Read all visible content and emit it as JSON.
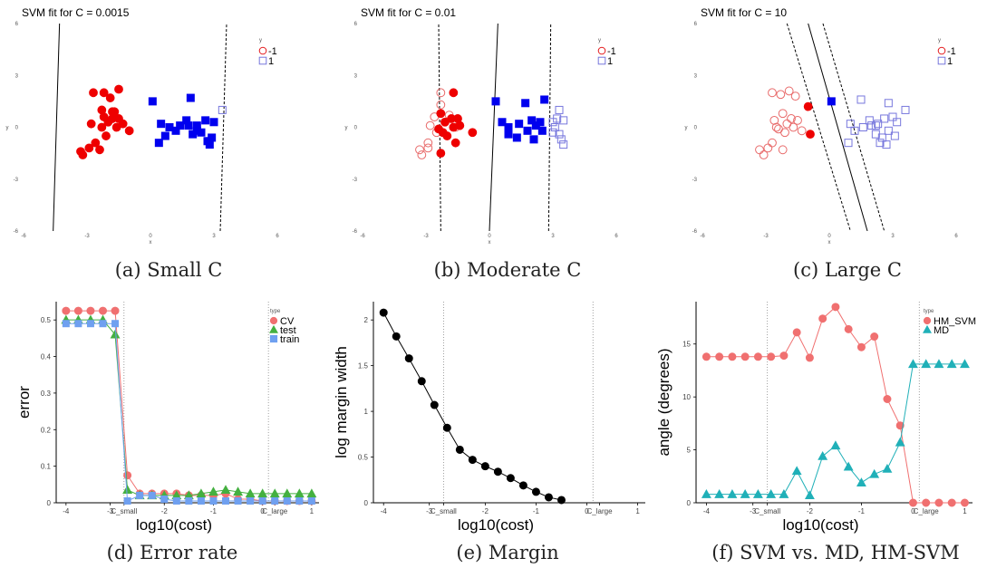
{
  "chart_data": [
    {
      "id": "a",
      "type": "scatter",
      "title": "SVM fit for C = 0.0015",
      "caption": "(a) Small C",
      "xlabel": "x",
      "ylabel": "y",
      "xlim": [
        -6,
        6
      ],
      "ylim": [
        -6,
        6
      ],
      "xticks": [
        -6,
        -3,
        0,
        3,
        6
      ],
      "yticks": [
        -6,
        -3,
        0,
        3,
        6
      ],
      "legend": {
        "title": "y",
        "entries": [
          {
            "label": "-1",
            "color": "#e41a1c",
            "shape": "circle"
          },
          {
            "label": "1",
            "color": "#7777dd",
            "shape": "square"
          }
        ],
        "placement": "top-right"
      },
      "lines": [
        {
          "style": "solid",
          "x1": -4.6,
          "y1": -6,
          "x2": -4.3,
          "y2": 6
        },
        {
          "style": "dashed",
          "x1": 3.3,
          "y1": -6,
          "x2": 3.6,
          "y2": 6
        }
      ],
      "series": [
        {
          "name": "-1",
          "shape": "circle",
          "filled": true,
          "x": [
            -2.7,
            -2.2,
            -1.9,
            -2.3,
            -2.8,
            -1.8,
            -1.5,
            -1.0,
            -2.0,
            -1.7,
            -1.6,
            -2.1,
            -2.6,
            -1.3,
            -3.3,
            -2.9,
            -2.4,
            -3.2,
            -2.3,
            -1.5,
            -1.8,
            -2.2
          ],
          "y": [
            2.0,
            2.0,
            1.7,
            1.0,
            0.2,
            0.5,
            0.5,
            -0.2,
            0.3,
            0.9,
            0.0,
            -0.5,
            -0.9,
            0.2,
            -1.4,
            -1.2,
            -1.3,
            -1.6,
            0.0,
            2.2,
            0.9,
            0.6
          ]
        },
        {
          "name": "1",
          "shape": "square",
          "filled": true,
          "x": [
            0.1,
            1.9,
            0.5,
            0.9,
            1.4,
            2.2,
            2.6,
            3.0,
            0.7,
            1.2,
            1.7,
            2.0,
            2.4,
            2.7,
            2.9,
            2.8,
            1.8,
            0.4,
            2.2
          ],
          "y": [
            1.5,
            1.7,
            0.2,
            0.0,
            0.1,
            0.1,
            0.4,
            0.3,
            -0.5,
            -0.2,
            0.4,
            -0.4,
            -0.3,
            -0.8,
            -0.6,
            -1.0,
            0.1,
            -0.9,
            -0.2
          ]
        },
        {
          "name": "1",
          "shape": "square",
          "filled": false,
          "x": [
            3.4
          ],
          "y": [
            1.0
          ]
        }
      ]
    },
    {
      "id": "b",
      "type": "scatter",
      "title": "SVM fit for C = 0.01",
      "caption": "(b) Moderate C",
      "xlabel": "x",
      "ylabel": "y",
      "xlim": [
        -6,
        6
      ],
      "ylim": [
        -6,
        6
      ],
      "xticks": [
        -6,
        -3,
        0,
        3,
        6
      ],
      "yticks": [
        -6,
        -3,
        0,
        3,
        6
      ],
      "legend": {
        "title": "y",
        "entries": [
          {
            "label": "-1",
            "color": "#e41a1c",
            "shape": "circle"
          },
          {
            "label": "1",
            "color": "#7777dd",
            "shape": "square"
          }
        ],
        "placement": "top-right"
      },
      "lines": [
        {
          "style": "dashed",
          "x1": -2.3,
          "y1": -6,
          "x2": -2.4,
          "y2": 6
        },
        {
          "style": "solid",
          "x1": 0.0,
          "y1": -6,
          "x2": 0.4,
          "y2": 6
        },
        {
          "style": "dashed",
          "x1": 2.8,
          "y1": -6,
          "x2": 2.9,
          "y2": 6
        }
      ],
      "series": [
        {
          "name": "-1",
          "shape": "circle",
          "filled": false,
          "x": [
            -2.3,
            -2.3,
            -1.9,
            -2.8,
            -2.6,
            -2.5,
            -2.9,
            -3.3,
            -2.9,
            -3.2,
            -1.6
          ],
          "y": [
            2.0,
            1.3,
            0.7,
            0.1,
            0.6,
            -0.3,
            -0.9,
            -1.3,
            -1.2,
            -1.6,
            0.0
          ]
        },
        {
          "name": "-1",
          "shape": "circle",
          "filled": true,
          "x": [
            -1.7,
            -2.3,
            -1.8,
            -1.5,
            -2.1,
            -1.7,
            -1.4,
            -2.4,
            -2.2,
            -0.8,
            -2.0,
            -1.6
          ],
          "y": [
            2.0,
            0.8,
            0.5,
            0.5,
            0.3,
            0.0,
            0.1,
            -0.1,
            -0.3,
            -0.3,
            -0.5,
            -0.9
          ]
        },
        {
          "name": "-1",
          "shape": "circle",
          "filled": true,
          "x": [
            -2.3
          ],
          "y": [
            -1.5
          ]
        },
        {
          "name": "1",
          "shape": "square",
          "filled": true,
          "x": [
            0.3,
            1.7,
            0.6,
            0.9,
            1.4,
            2.0,
            2.2,
            2.4,
            2.6,
            0.9,
            1.3,
            1.8,
            2.1,
            2.5
          ],
          "y": [
            1.5,
            1.4,
            0.3,
            0.0,
            0.2,
            0.4,
            0.1,
            0.3,
            1.6,
            -0.4,
            -0.6,
            -0.2,
            -0.7,
            -0.2
          ]
        },
        {
          "name": "1",
          "shape": "square",
          "filled": false,
          "x": [
            3.3,
            3.0,
            3.1,
            3.2,
            3.5,
            3.0,
            3.3,
            3.4,
            3.5
          ],
          "y": [
            1.0,
            0.3,
            0.0,
            0.5,
            0.4,
            -0.3,
            -0.4,
            -0.7,
            -1.0
          ]
        }
      ]
    },
    {
      "id": "c",
      "type": "scatter",
      "title": "SVM fit for C = 10",
      "caption": "(c) Large C",
      "xlabel": "x",
      "ylabel": "y",
      "xlim": [
        -6,
        6
      ],
      "ylim": [
        -6,
        6
      ],
      "xticks": [
        -6,
        -3,
        0,
        3,
        6
      ],
      "yticks": [
        -6,
        -3,
        0,
        3,
        6
      ],
      "legend": {
        "title": "y",
        "entries": [
          {
            "label": "-1",
            "color": "#e41a1c",
            "shape": "circle"
          },
          {
            "label": "1",
            "color": "#7777dd",
            "shape": "square"
          }
        ],
        "placement": "top-right"
      },
      "lines": [
        {
          "style": "dashed",
          "x1": -2.0,
          "y1": 6,
          "x2": 1.0,
          "y2": -6
        },
        {
          "style": "solid",
          "x1": -1.0,
          "y1": 6,
          "x2": 1.8,
          "y2": -6
        },
        {
          "style": "dashed",
          "x1": -0.3,
          "y1": 6,
          "x2": 2.6,
          "y2": -6
        }
      ],
      "series": [
        {
          "name": "-1",
          "shape": "circle",
          "filled": false,
          "x": [
            -2.7,
            -2.3,
            -1.9,
            -1.6,
            -2.2,
            -1.8,
            -1.5,
            -2.0,
            -2.1,
            -2.4,
            -2.7,
            -2.6,
            -1.3,
            -3.3,
            -2.9,
            -2.2,
            -3.1,
            -2.5,
            -1.7
          ],
          "y": [
            2.0,
            1.9,
            2.1,
            1.8,
            0.8,
            0.5,
            0.4,
            0.2,
            -0.3,
            -0.1,
            -0.9,
            0.4,
            -0.2,
            -1.3,
            -1.2,
            -1.3,
            -1.6,
            0.0,
            0.0
          ]
        },
        {
          "name": "-1",
          "shape": "circle",
          "filled": true,
          "x": [
            -1.0,
            -0.9
          ],
          "y": [
            1.2,
            -0.4
          ]
        },
        {
          "name": "1",
          "shape": "square",
          "filled": true,
          "x": [
            0.1
          ],
          "y": [
            1.5
          ]
        },
        {
          "name": "1",
          "shape": "square",
          "filled": false,
          "x": [
            1.0,
            1.5,
            2.0,
            2.3,
            2.6,
            2.8,
            3.0,
            3.2,
            3.6,
            1.2,
            1.6,
            2.2,
            2.5,
            2.8,
            3.1,
            0.9,
            2.2,
            2.4,
            2.7,
            1.9
          ],
          "y": [
            0.2,
            1.6,
            0.1,
            0.2,
            0.5,
            1.4,
            0.6,
            0.3,
            1.0,
            -0.2,
            0.0,
            -0.4,
            -0.6,
            -0.2,
            -0.5,
            -0.9,
            0.1,
            -0.9,
            -1.0,
            0.4
          ]
        }
      ]
    },
    {
      "id": "d",
      "type": "line",
      "caption": "(d) Error rate",
      "xlabel": "log10(cost)",
      "ylabel": "error",
      "xlim": [
        -4.2,
        1.15
      ],
      "ylim": [
        0,
        0.55
      ],
      "xticks": [
        {
          "v": -4,
          "label": "-4"
        },
        {
          "v": -3.1,
          "label": "-3"
        },
        {
          "v": -2.82,
          "label": "C_small"
        },
        {
          "v": -2,
          "label": "-2"
        },
        {
          "v": -1,
          "label": "-1"
        },
        {
          "v": 0,
          "label": "0"
        },
        {
          "v": 0.25,
          "label": "C_large"
        },
        {
          "v": 1,
          "label": "1"
        }
      ],
      "yticks": [
        0,
        0.1,
        0.2,
        0.3,
        0.4,
        0.5
      ],
      "vlines": [
        -2.82,
        0.12
      ],
      "legend": {
        "title": "type",
        "entries": [
          {
            "label": "CV",
            "color": "#f07070",
            "shape": "circle"
          },
          {
            "label": "test",
            "color": "#44b040",
            "shape": "triangle"
          },
          {
            "label": "train",
            "color": "#6fa0f0",
            "shape": "square"
          }
        ],
        "placement": "top-right"
      },
      "x": [
        -4,
        -3.75,
        -3.5,
        -3.25,
        -3,
        -2.75,
        -2.5,
        -2.25,
        -2,
        -1.75,
        -1.5,
        -1.25,
        -1,
        -0.75,
        -0.5,
        -0.25,
        0,
        0.25,
        0.5,
        0.75,
        1
      ],
      "series": [
        {
          "name": "CV",
          "color": "#f07070",
          "shape": "circle",
          "values": [
            0.525,
            0.525,
            0.525,
            0.525,
            0.525,
            0.075,
            0.025,
            0.025,
            0.025,
            0.025,
            0.02,
            0.02,
            0.02,
            0.025,
            0.01,
            0.01,
            0.005,
            0.005,
            0.005,
            0.005,
            0.005
          ]
        },
        {
          "name": "test",
          "color": "#44b040",
          "shape": "triangle",
          "values": [
            0.5,
            0.5,
            0.5,
            0.5,
            0.46,
            0.035,
            0.02,
            0.02,
            0.02,
            0.02,
            0.02,
            0.025,
            0.03,
            0.035,
            0.03,
            0.025,
            0.025,
            0.025,
            0.025,
            0.025,
            0.025
          ]
        },
        {
          "name": "train",
          "color": "#6fa0f0",
          "shape": "square",
          "values": [
            0.49,
            0.49,
            0.49,
            0.49,
            0.49,
            0.005,
            0.02,
            0.02,
            0.01,
            0.005,
            0.005,
            0.005,
            0.005,
            0.005,
            0.005,
            0.005,
            0.005,
            0.005,
            0.005,
            0.005,
            0.005
          ]
        }
      ]
    },
    {
      "id": "e",
      "type": "line",
      "caption": "(e) Margin",
      "xlabel": "log10(cost)",
      "ylabel": "log margin width",
      "xlim": [
        -4.2,
        1.15
      ],
      "ylim": [
        0,
        2.2
      ],
      "xticks": [
        {
          "v": -4,
          "label": "-4"
        },
        {
          "v": -3.1,
          "label": "-3"
        },
        {
          "v": -2.82,
          "label": "C_small"
        },
        {
          "v": -2,
          "label": "-2"
        },
        {
          "v": -1,
          "label": "-1"
        },
        {
          "v": 0,
          "label": "0"
        },
        {
          "v": 0.25,
          "label": "C_large"
        },
        {
          "v": 1,
          "label": "1"
        }
      ],
      "yticks": [
        0,
        0.5,
        1.0,
        1.5,
        2.0
      ],
      "vlines": [
        -2.82,
        0.12
      ],
      "x": [
        -4,
        -3.75,
        -3.5,
        -3.25,
        -3,
        -2.75,
        -2.5,
        -2.25,
        -2,
        -1.75,
        -1.5,
        -1.25,
        -1,
        -0.75,
        -0.5
      ],
      "series": [
        {
          "color": "#000000",
          "shape": "circle",
          "values": [
            2.08,
            1.82,
            1.58,
            1.33,
            1.07,
            0.82,
            0.58,
            0.47,
            0.4,
            0.34,
            0.27,
            0.19,
            0.12,
            0.06,
            0.03
          ]
        }
      ]
    },
    {
      "id": "f",
      "type": "line",
      "caption": "(f) SVM vs. MD, HM-SVM",
      "xlabel": "log10(cost)",
      "ylabel": "angle (degrees)",
      "xlim": [
        -4.2,
        1.15
      ],
      "ylim": [
        0,
        19
      ],
      "xticks": [
        {
          "v": -4,
          "label": "-4"
        },
        {
          "v": -3.1,
          "label": "-3"
        },
        {
          "v": -2.82,
          "label": "C_small"
        },
        {
          "v": -2,
          "label": "-2"
        },
        {
          "v": -1,
          "label": "-1"
        },
        {
          "v": 0,
          "label": "0"
        },
        {
          "v": 0.25,
          "label": "C_large"
        },
        {
          "v": 1,
          "label": "1"
        }
      ],
      "yticks": [
        0,
        5,
        10,
        15
      ],
      "vlines": [
        -2.82,
        0.12
      ],
      "legend": {
        "title": "type",
        "entries": [
          {
            "label": "HM_SVM",
            "color": "#f07070",
            "shape": "circle"
          },
          {
            "label": "MD",
            "color": "#20b0b8",
            "shape": "triangle"
          }
        ],
        "placement": "top-right"
      },
      "x": [
        -4,
        -3.75,
        -3.5,
        -3.25,
        -3,
        -2.75,
        -2.5,
        -2.25,
        -2,
        -1.75,
        -1.5,
        -1.25,
        -1,
        -0.75,
        -0.5,
        -0.25,
        0,
        0.25,
        0.5,
        0.75,
        1
      ],
      "series": [
        {
          "name": "HM_SVM",
          "color": "#f07070",
          "shape": "circle",
          "values": [
            13.8,
            13.8,
            13.8,
            13.8,
            13.8,
            13.8,
            13.9,
            16.1,
            13.7,
            17.4,
            18.5,
            16.4,
            14.7,
            15.7,
            9.8,
            7.3,
            0.0,
            0.0,
            0.0,
            0.0,
            0.0
          ]
        },
        {
          "name": "MD",
          "color": "#20b0b8",
          "shape": "triangle",
          "values": [
            0.8,
            0.8,
            0.8,
            0.8,
            0.8,
            0.8,
            0.8,
            3.0,
            0.7,
            4.4,
            5.4,
            3.4,
            1.9,
            2.7,
            3.2,
            5.7,
            13.1,
            13.1,
            13.1,
            13.1,
            13.1
          ]
        }
      ]
    }
  ]
}
